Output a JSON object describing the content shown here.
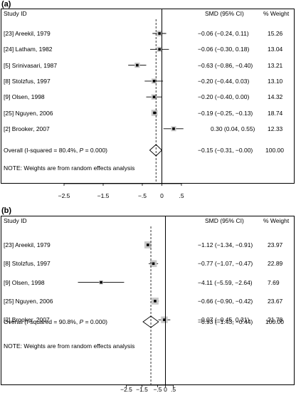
{
  "chart_data": [
    {
      "type": "forest",
      "panel_label": "(a)",
      "header": {
        "study": "Study ID",
        "effect": "SMD (95% CI)",
        "weight": "% Weight"
      },
      "studies": [
        {
          "label": "[23] Areekil, 1979",
          "smd": -0.06,
          "lo": -0.24,
          "hi": 0.11,
          "ci_text": "−0.06 (−0.24, 0.11)",
          "weight": "15.26"
        },
        {
          "label": "[24] Latham, 1982",
          "smd": -0.06,
          "lo": -0.3,
          "hi": 0.18,
          "ci_text": "−0.06 (−0.30, 0.18)",
          "weight": "13.04"
        },
        {
          "label": "[5] Srinivasari, 1987",
          "smd": -0.63,
          "lo": -0.86,
          "hi": -0.4,
          "ci_text": "−0.63 (−0.86, −0.40)",
          "weight": "13.21"
        },
        {
          "label": "[8] Stolzfus, 1997",
          "smd": -0.2,
          "lo": -0.44,
          "hi": 0.03,
          "ci_text": "−0.20 (−0.44, 0.03)",
          "weight": "13.10"
        },
        {
          "label": "[9] Olsen, 1998",
          "smd": -0.2,
          "lo": -0.4,
          "hi": 0.0,
          "ci_text": "−0.20 (−0.40, 0.00)",
          "weight": "14.32"
        },
        {
          "label": "[25] Nguyen, 2006",
          "smd": -0.19,
          "lo": -0.25,
          "hi": -0.13,
          "ci_text": "−0.19 (−0.25, −0.13)",
          "weight": "18.74"
        },
        {
          "label": "[2] Brooker, 2007",
          "smd": 0.3,
          "lo": 0.04,
          "hi": 0.55,
          "ci_text": "0.30 (0.04, 0.55)",
          "weight": "12.33"
        }
      ],
      "overall": {
        "label_prefix": "Overall (I-squared = 80.4%, ",
        "p_label": "P",
        "p_value": " = 0.000)",
        "smd": -0.15,
        "lo": -0.31,
        "hi": 0.0,
        "ci_text": "−0.15 (−0.31, −0.00)",
        "weight": "100.00"
      },
      "note": "NOTE: Weights are from random effects analysis",
      "xticks": [
        -2.5,
        -1.5,
        -0.5,
        0,
        0.5
      ],
      "xtick_labels": [
        "−2.5",
        "−1.5",
        "−.5",
        "0",
        ".5"
      ],
      "xlim": [
        -3.0,
        0.7
      ]
    },
    {
      "type": "forest",
      "panel_label": "(b)",
      "header": {
        "study": "Study ID",
        "effect": "SMD (95% CI)",
        "weight": "% Weight"
      },
      "studies": [
        {
          "label": "[23] Areekil, 1979",
          "smd": -1.12,
          "lo": -1.34,
          "hi": -0.91,
          "ci_text": "−1.12 (−1.34, −0.91)",
          "weight": "23.97"
        },
        {
          "label": "[8] Stolzfus, 1997",
          "smd": -0.77,
          "lo": -1.07,
          "hi": -0.47,
          "ci_text": "−0.77 (−1.07, −0.47)",
          "weight": "22.89"
        },
        {
          "label": "[9] Olsen, 1998",
          "smd": -4.11,
          "lo": -5.59,
          "hi": -2.64,
          "ci_text": "−4.11 (−5.59, −2.64)",
          "weight": "7.69"
        },
        {
          "label": "[25] Nguyen, 2006",
          "smd": -0.66,
          "lo": -0.9,
          "hi": -0.42,
          "ci_text": "−0.66 (−0.90, −0.42)",
          "weight": "23.67"
        },
        {
          "label": "[2] Brooker, 2007",
          "smd": -0.07,
          "lo": -0.45,
          "hi": 0.31,
          "ci_text": "−0.07 (−0.45, 0.31)",
          "weight": "21.78"
        }
      ],
      "overall": {
        "label_prefix": "Overall (I-squared = 90.8%, ",
        "p_label": "P",
        "p_value": " = 0.000)",
        "smd": -0.93,
        "lo": -1.43,
        "hi": -0.44,
        "ci_text": "−0.93 (−1.43, −0.44)",
        "weight": "100.00"
      },
      "note": "NOTE: Weights are from random effects analysis",
      "xticks": [
        -2.5,
        -1.5,
        -0.5,
        0,
        0.5
      ],
      "xtick_labels": [
        "−2.5",
        "−1.5",
        "−.5",
        "0",
        ".5"
      ],
      "xlim": [
        -6.2,
        1.2
      ]
    }
  ]
}
